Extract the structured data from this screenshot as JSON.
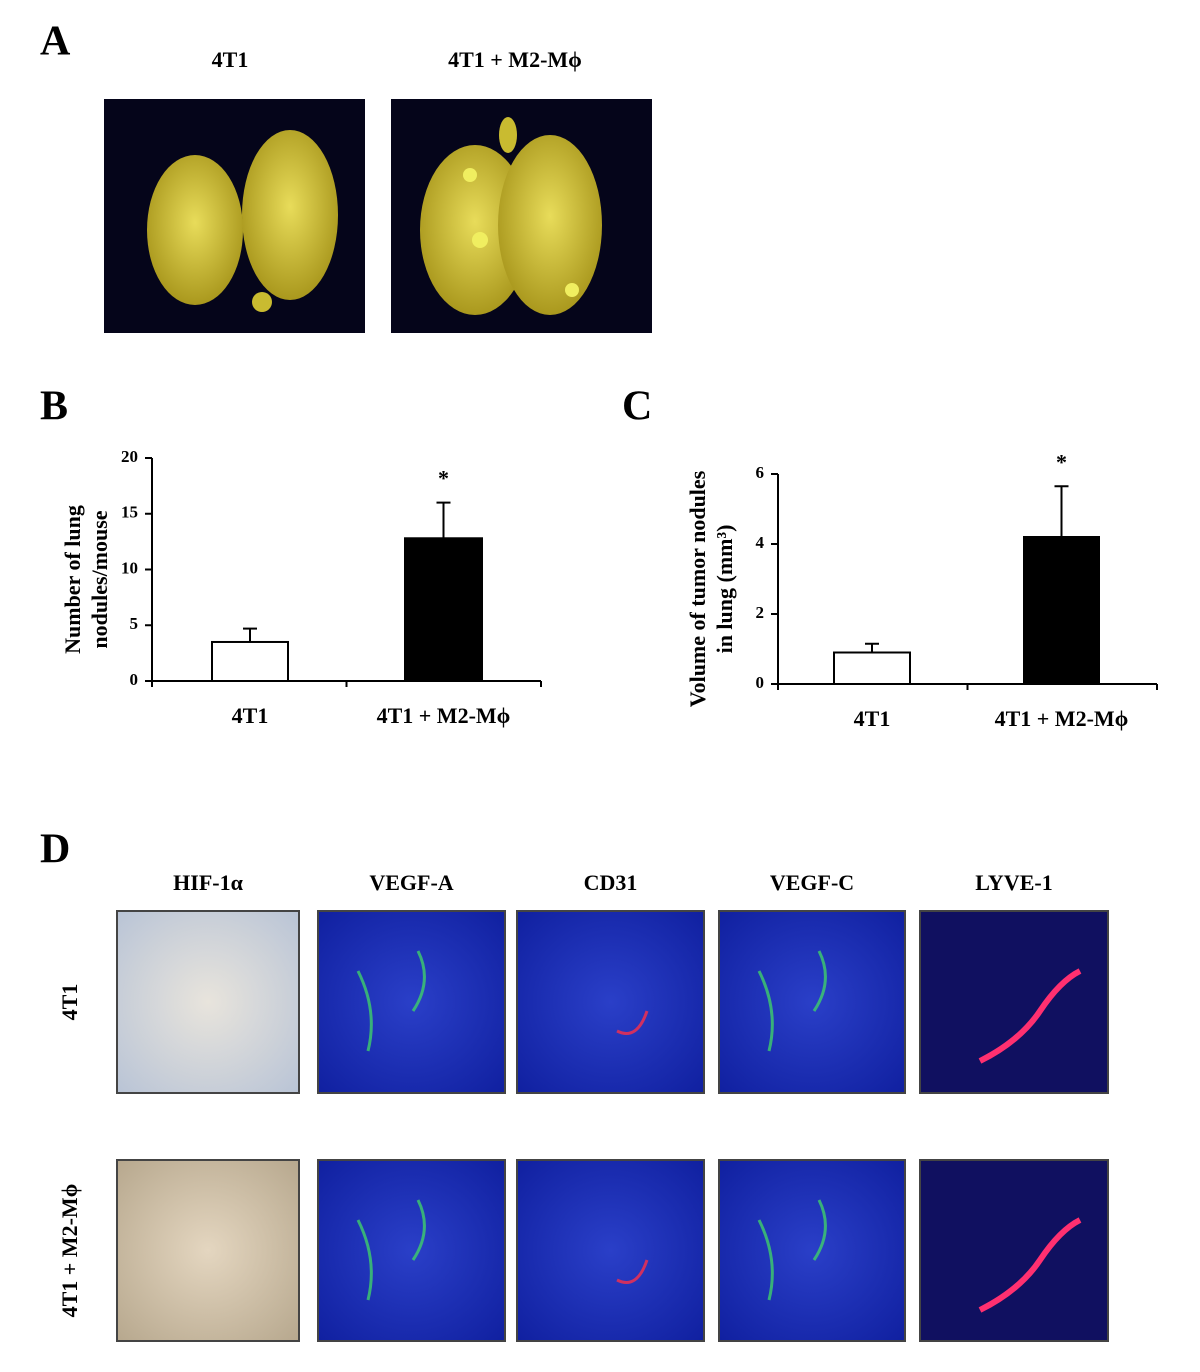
{
  "panel_a": {
    "label": "A",
    "columns": [
      "4T1",
      "4T1 + M2-Mϕ"
    ]
  },
  "chart_data": [
    {
      "type": "bar",
      "panel_label": "B",
      "ylabel_lines": [
        "Number of lung",
        "nodules/mouse"
      ],
      "categories": [
        "4T1",
        "4T1 + M2-Mϕ"
      ],
      "values": [
        3.5,
        12.8
      ],
      "errors": [
        1.2,
        3.2
      ],
      "significance": [
        null,
        "*"
      ],
      "colors": [
        "#ffffff",
        "#000000"
      ],
      "ylim": [
        0,
        20
      ],
      "yticks": [
        0,
        5,
        10,
        15,
        20
      ]
    },
    {
      "type": "bar",
      "panel_label": "C",
      "ylabel_lines": [
        "Volume of tumor nodules",
        "in lung (mm³)"
      ],
      "categories": [
        "4T1",
        "4T1 + M2-Mϕ"
      ],
      "values": [
        0.9,
        4.2
      ],
      "errors": [
        0.25,
        1.45
      ],
      "significance": [
        null,
        "*"
      ],
      "colors": [
        "#ffffff",
        "#000000"
      ],
      "ylim": [
        0,
        6
      ],
      "yticks": [
        0,
        2,
        4,
        6
      ]
    }
  ],
  "panel_d": {
    "label": "D",
    "columns": [
      "HIF-1α",
      "VEGF-A",
      "CD31",
      "VEGF-C",
      "LYVE-1"
    ],
    "rows": [
      "4T1",
      "4T1 + M2-Mϕ"
    ]
  }
}
